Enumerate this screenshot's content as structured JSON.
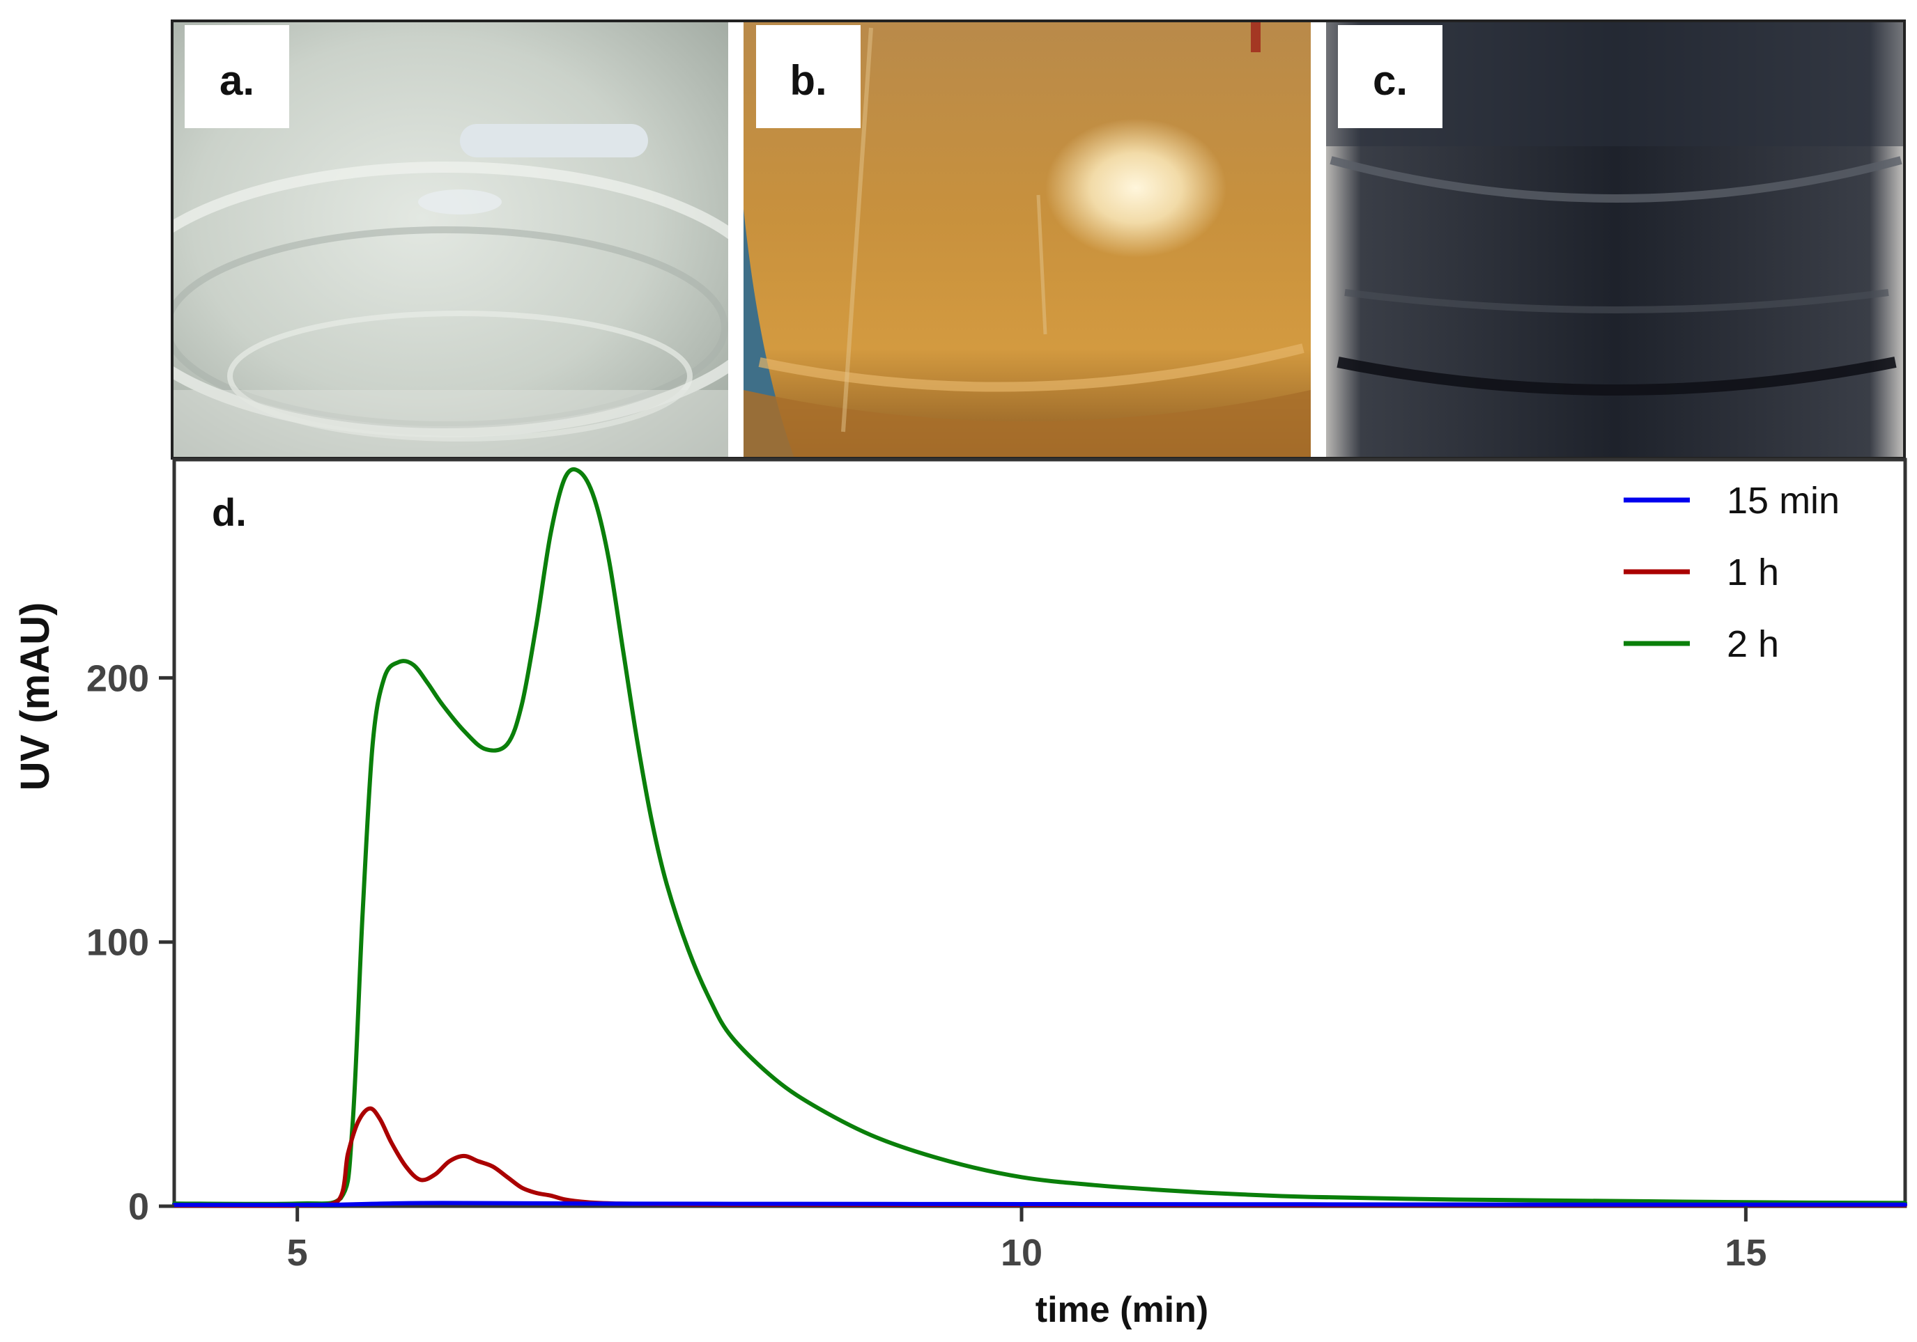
{
  "panels": [
    {
      "id": "a",
      "label": "a.",
      "colors": {
        "base": "#c9d0c8",
        "light": "#e6ebe5",
        "dark": "#8f9891"
      }
    },
    {
      "id": "b",
      "label": "b.",
      "colors": {
        "base": "#c58e3e",
        "light": "#e9c98f",
        "dark": "#7a5320",
        "accent": "#3f6f88"
      }
    },
    {
      "id": "c",
      "label": "c.",
      "colors": {
        "base": "#23272f",
        "light": "#6f737b",
        "dark": "#0e1015",
        "accent": "#c4c2bf"
      }
    }
  ],
  "chart_panel_label": "d.",
  "chart_data": {
    "type": "line",
    "xlabel": "time (min)",
    "ylabel": "UV (mAU)",
    "xlim": [
      4.15,
      16.1
    ],
    "ylim": [
      0,
      280
    ],
    "xticks": [
      5,
      10,
      15
    ],
    "yticks": [
      0,
      100,
      200
    ],
    "grid": false,
    "legend_position": "top-right",
    "series": [
      {
        "name": "15 min",
        "color": "#0000ee",
        "x": [
          4.15,
          5.0,
          5.3,
          5.6,
          6.0,
          7.0,
          8.0,
          10.0,
          12.0,
          14.0,
          16.1
        ],
        "y": [
          0.5,
          0.5,
          0.6,
          1.0,
          1.2,
          1.0,
          0.9,
          0.8,
          0.7,
          0.6,
          0.6
        ]
      },
      {
        "name": "1 h",
        "color": "#aa0000",
        "x": [
          4.15,
          5.0,
          5.28,
          5.35,
          5.42,
          5.5,
          5.57,
          5.65,
          5.75,
          5.85,
          5.95,
          6.05,
          6.15,
          6.25,
          6.35,
          6.45,
          6.55,
          6.65,
          6.75,
          6.85,
          7.0,
          7.2,
          7.5,
          8.0,
          10.0,
          12.0,
          16.1
        ],
        "y": [
          0.3,
          0.3,
          2,
          20,
          32,
          37,
          33,
          24,
          15,
          10,
          12,
          17,
          19,
          17,
          15,
          11,
          7,
          5,
          4,
          2.5,
          1.5,
          1.0,
          0.8,
          0.6,
          0.5,
          0.4,
          0.4
        ]
      },
      {
        "name": "2 h",
        "color": "#0a7f0a",
        "x": [
          4.15,
          5.0,
          5.3,
          5.38,
          5.45,
          5.52,
          5.6,
          5.7,
          5.8,
          5.9,
          6.0,
          6.15,
          6.3,
          6.45,
          6.55,
          6.65,
          6.75,
          6.85,
          6.95,
          7.05,
          7.15,
          7.25,
          7.35,
          7.45,
          7.55,
          7.7,
          7.85,
          8.0,
          8.3,
          8.6,
          9.0,
          9.5,
          10.0,
          10.5,
          11.0,
          11.5,
          12.0,
          13.0,
          14.0,
          15.0,
          16.1
        ],
        "y": [
          1,
          1,
          3,
          30,
          110,
          175,
          200,
          206,
          205,
          198,
          190,
          180,
          173,
          175,
          190,
          220,
          255,
          276,
          278,
          268,
          245,
          210,
          175,
          145,
          122,
          97,
          78,
          64,
          48,
          37,
          26,
          17,
          11,
          8,
          6,
          4.5,
          3.5,
          2.5,
          2,
          1.5,
          1.2
        ]
      }
    ]
  }
}
